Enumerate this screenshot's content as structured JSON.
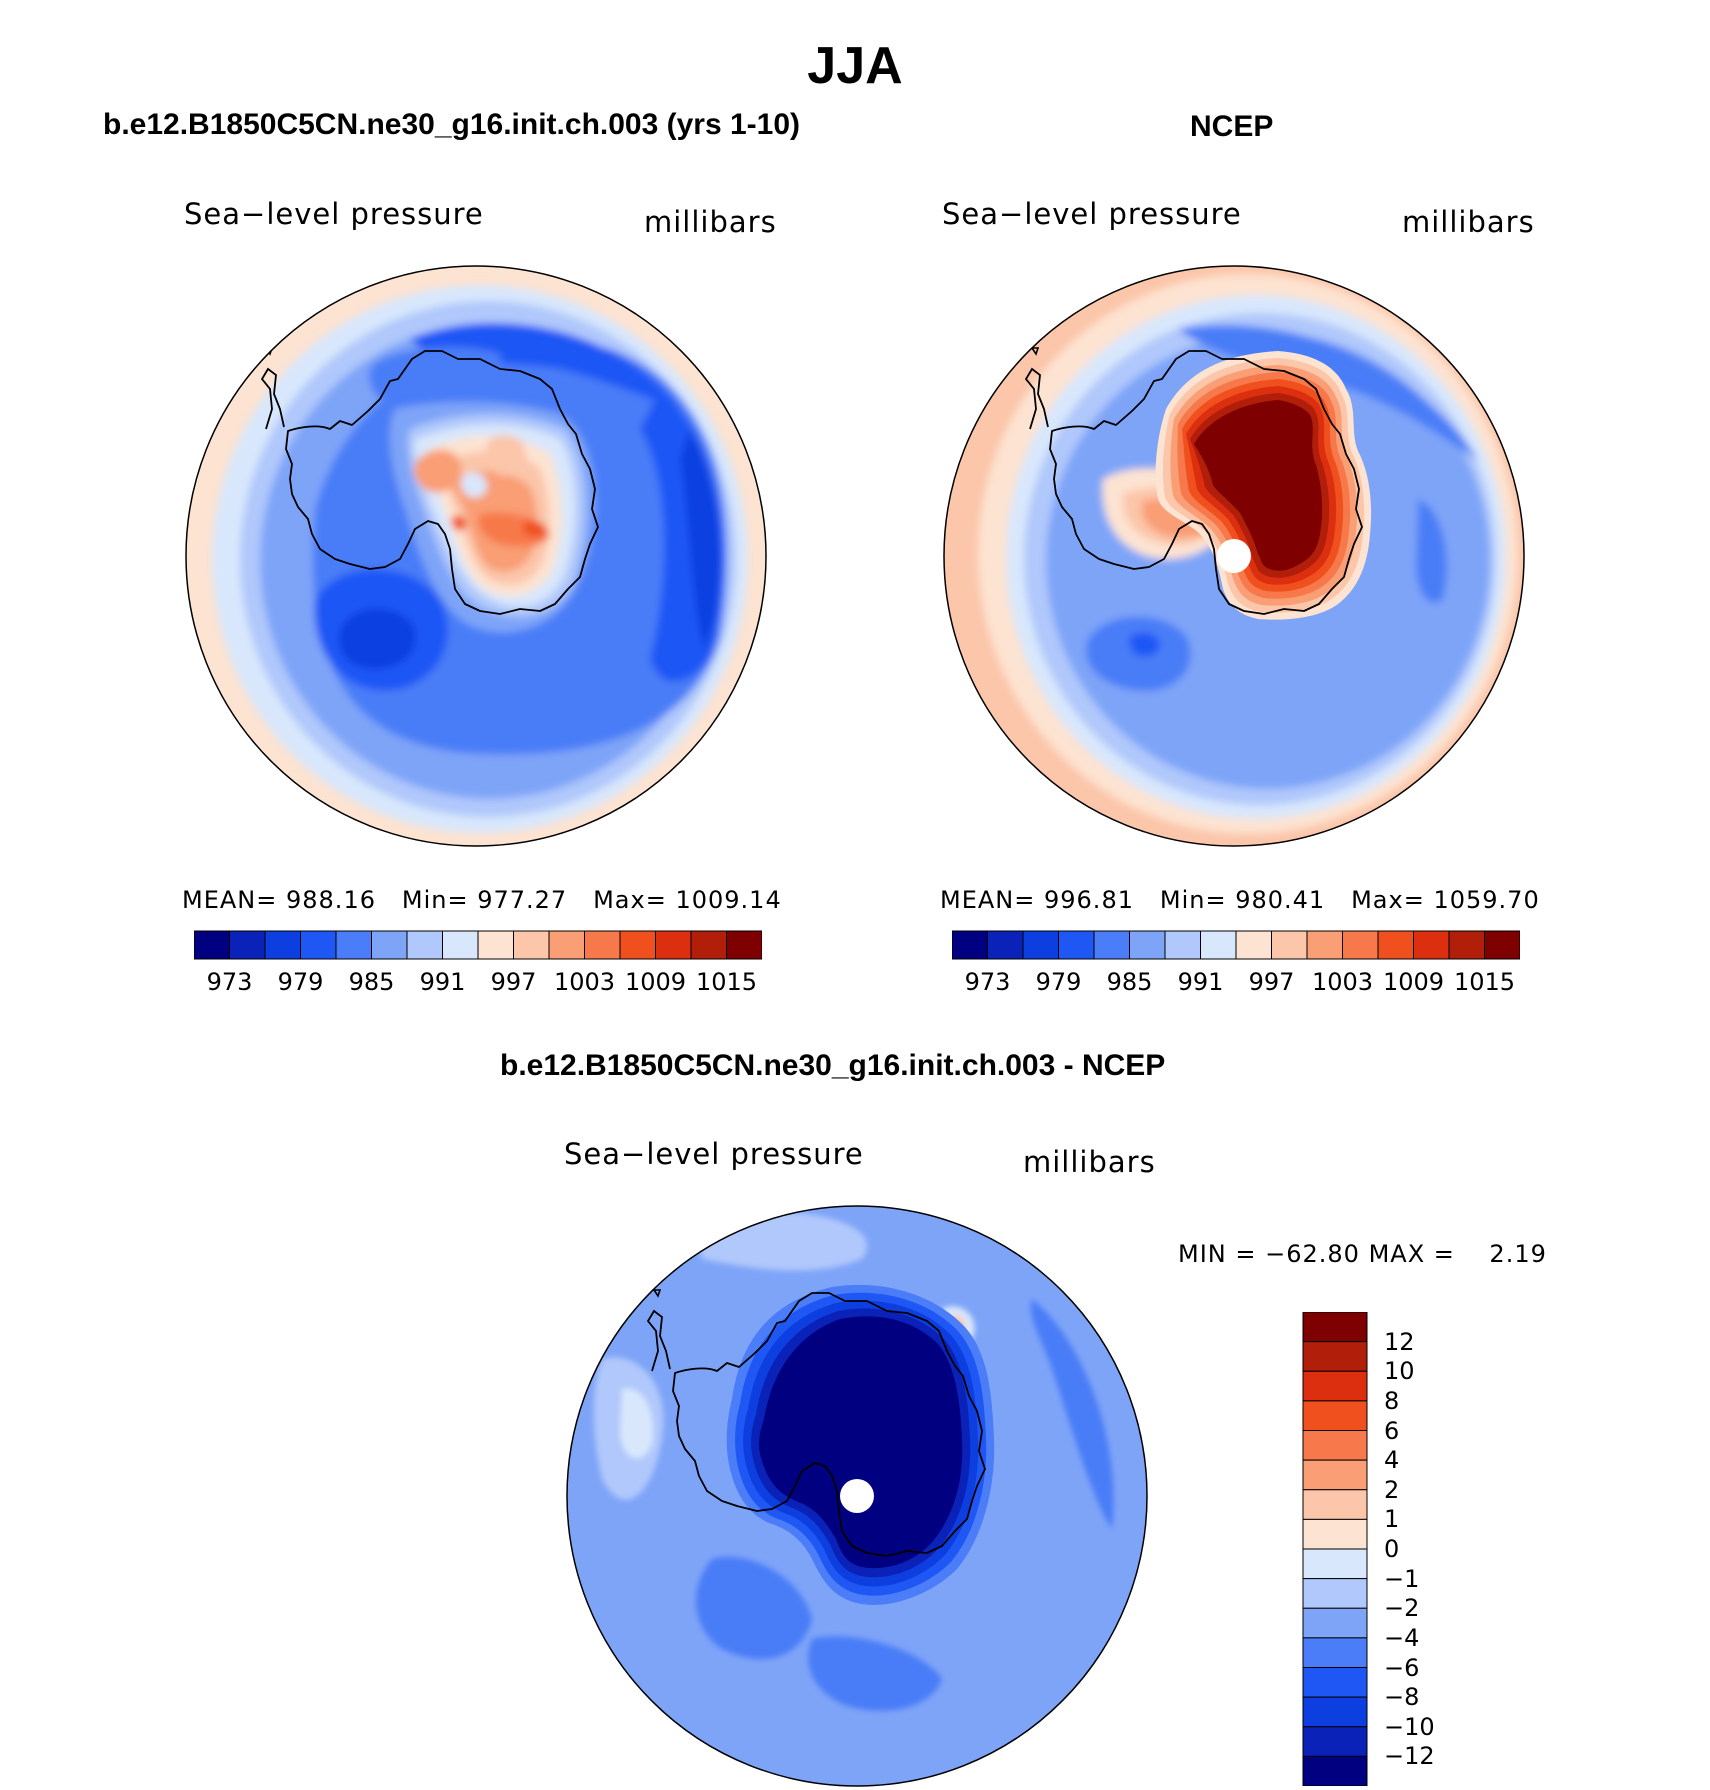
{
  "figure": {
    "title": "JJA"
  },
  "panels": [
    {
      "id": "model",
      "title": "b.e12.B1850C5CN.ne30_g16.init.ch.003 (yrs 1-10)",
      "variable": "Sea−level pressure",
      "units": "millibars",
      "stats": {
        "mean_label": "MEAN=",
        "mean": "988.16",
        "min_label": "Min=",
        "min": "977.27",
        "max_label": "Max=",
        "max": "1009.14"
      },
      "colorbar_ticks": [
        "973",
        "979",
        "985",
        "991",
        "997",
        "1003",
        "1009",
        "1015"
      ]
    },
    {
      "id": "ncep",
      "title": "NCEP",
      "variable": "Sea−level pressure",
      "units": "millibars",
      "stats": {
        "mean_label": "MEAN=",
        "mean": "996.81",
        "min_label": "Min=",
        "min": "980.41",
        "max_label": "Max=",
        "max": "1059.70"
      },
      "colorbar_ticks": [
        "973",
        "979",
        "985",
        "991",
        "997",
        "1003",
        "1009",
        "1015"
      ]
    },
    {
      "id": "difference",
      "title": "b.e12.B1850C5CN.ne30_g16.init.ch.003 - NCEP",
      "variable": "Sea−level pressure",
      "units": "millibars",
      "stats": {
        "min_label": "MIN =",
        "min": "−62.80",
        "max_label": "MAX =",
        "max": "2.19"
      },
      "colorbar_ticks": [
        "12",
        "10",
        "8",
        "6",
        "4",
        "2",
        "1",
        "0",
        "−1",
        "−2",
        "−4",
        "−6",
        "−8",
        "−10",
        "−12"
      ]
    }
  ],
  "colors": {
    "slp_scale": [
      "#000080",
      "#0a22b8",
      "#0d3fe0",
      "#1f57f5",
      "#4a7df7",
      "#7ea4f8",
      "#b0c8fb",
      "#d8e7fc",
      "#fde3d1",
      "#fbc6aa",
      "#f99e75",
      "#f7784a",
      "#f0501e",
      "#dc2f0f",
      "#b11e0a",
      "#7e0000"
    ],
    "diff_scale": [
      "#000080",
      "#0a22b8",
      "#0d3fe0",
      "#1f57f5",
      "#4a7df7",
      "#7ea4f8",
      "#b0c8fb",
      "#d8e7fc",
      "#fde3d1",
      "#fbc6aa",
      "#f99e75",
      "#f7784a",
      "#f0501e",
      "#dc2f0f",
      "#b11e0a",
      "#7e0000"
    ],
    "coast": "#000000",
    "mask": "#ffffff"
  },
  "chart_data": [
    {
      "type": "map",
      "projection": "south-polar stereographic",
      "title": "b.e12.B1850C5CN.ne30_g16.init.ch.003 (yrs 1-10)",
      "variable": "Sea-level pressure",
      "units": "millibars",
      "mean": 988.16,
      "min": 977.27,
      "max": 1009.14,
      "contour_levels": [
        973,
        976,
        979,
        982,
        985,
        988,
        991,
        994,
        997,
        1000,
        1003,
        1006,
        1009,
        1012,
        1015
      ],
      "colorbar_tick_labels": [
        973,
        979,
        985,
        991,
        997,
        1003,
        1009,
        1015
      ]
    },
    {
      "type": "map",
      "projection": "south-polar stereographic",
      "title": "NCEP",
      "variable": "Sea-level pressure",
      "units": "millibars",
      "mean": 996.81,
      "min": 980.41,
      "max": 1059.7,
      "contour_levels": [
        973,
        976,
        979,
        982,
        985,
        988,
        991,
        994,
        997,
        1000,
        1003,
        1006,
        1009,
        1012,
        1015
      ],
      "colorbar_tick_labels": [
        973,
        979,
        985,
        991,
        997,
        1003,
        1009,
        1015
      ]
    },
    {
      "type": "map",
      "projection": "south-polar stereographic",
      "title": "b.e12.B1850C5CN.ne30_g16.init.ch.003 - NCEP",
      "variable": "Sea-level pressure",
      "units": "millibars",
      "min": -62.8,
      "max": 2.19,
      "contour_levels": [
        -12,
        -10,
        -8,
        -6,
        -4,
        -2,
        -1,
        0,
        1,
        2,
        4,
        6,
        8,
        10,
        12
      ],
      "colorbar_tick_labels": [
        12,
        10,
        8,
        6,
        4,
        2,
        1,
        0,
        -1,
        -2,
        -4,
        -6,
        -8,
        -10,
        -12
      ]
    }
  ]
}
